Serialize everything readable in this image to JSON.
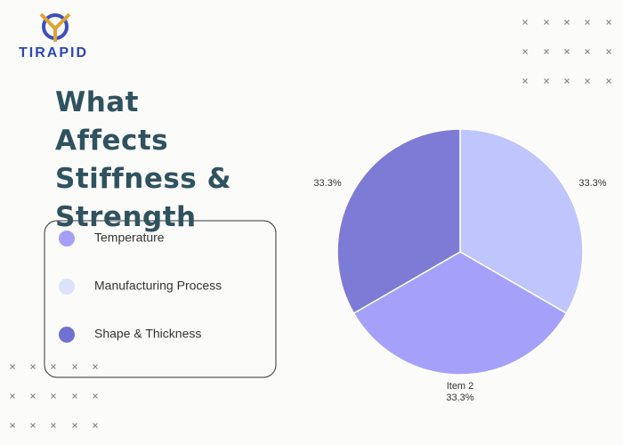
{
  "logo": "TIRAPID",
  "chart_data": {
    "type": "pie",
    "title": "What Affects Stiffness & Strength",
    "categories": [
      null,
      "Item 2",
      null
    ],
    "values": [
      33.3,
      33.3,
      33.3
    ],
    "value_labels": [
      "33.3%",
      "33.3%",
      "33.3%"
    ],
    "colors": [
      "#bfc6fd",
      "#a5a1fa",
      "#7e7bd6"
    ],
    "legend": [
      {
        "name": "Temperature",
        "color": "#a4a0f8"
      },
      {
        "name": "Manufacturing Process",
        "color": "#dde2fc"
      },
      {
        "name": "Shape & Thickness",
        "color": "#6e72d2"
      }
    ]
  }
}
